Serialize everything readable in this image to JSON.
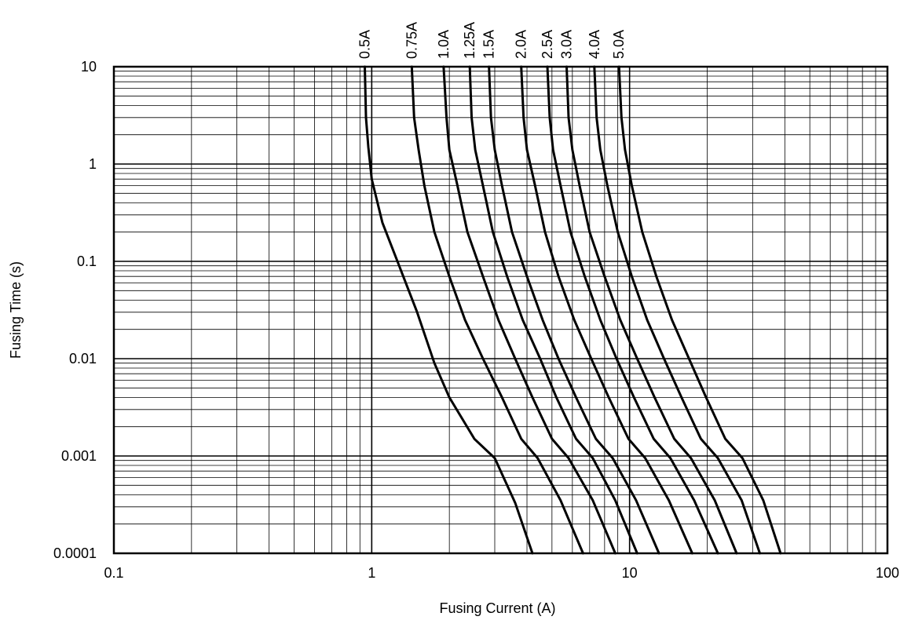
{
  "chart_data": {
    "type": "line",
    "title": "",
    "xlabel": "Fusing Current (A)",
    "ylabel": "Fusing Time (s)",
    "x_scale": "log",
    "y_scale": "log",
    "xlim": [
      0.1,
      100
    ],
    "ylim": [
      0.0001,
      10
    ],
    "grid": true,
    "x_tick_labels": [
      "0.1",
      "1",
      "10",
      "100"
    ],
    "y_tick_labels": [
      "10",
      "1",
      "0.1",
      "0.01",
      "0.001",
      "0.0001"
    ],
    "legend": "curve labels at top",
    "series": [
      {
        "name": "0.5A",
        "points": [
          [
            0.94,
            10
          ],
          [
            0.95,
            3
          ],
          [
            0.97,
            1.5
          ],
          [
            1.0,
            0.7
          ],
          [
            1.1,
            0.25
          ],
          [
            1.3,
            0.08
          ],
          [
            1.5,
            0.03
          ],
          [
            1.75,
            0.009
          ],
          [
            2.0,
            0.004
          ],
          [
            2.5,
            0.0015
          ],
          [
            3.0,
            0.00095
          ],
          [
            3.6,
            0.00033
          ],
          [
            4.2,
            0.0001
          ]
        ]
      },
      {
        "name": "0.75A",
        "points": [
          [
            1.43,
            10
          ],
          [
            1.46,
            3
          ],
          [
            1.52,
            1.4
          ],
          [
            1.6,
            0.6
          ],
          [
            1.75,
            0.2
          ],
          [
            2.0,
            0.07
          ],
          [
            2.3,
            0.025
          ],
          [
            2.7,
            0.01
          ],
          [
            3.2,
            0.004
          ],
          [
            3.8,
            0.0015
          ],
          [
            4.4,
            0.00095
          ],
          [
            5.4,
            0.00035
          ],
          [
            6.6,
            0.0001
          ]
        ]
      },
      {
        "name": "1.0A",
        "points": [
          [
            1.9,
            10
          ],
          [
            1.95,
            3
          ],
          [
            2.0,
            1.4
          ],
          [
            2.15,
            0.6
          ],
          [
            2.35,
            0.2
          ],
          [
            2.7,
            0.07
          ],
          [
            3.1,
            0.025
          ],
          [
            3.6,
            0.01
          ],
          [
            4.2,
            0.004
          ],
          [
            5.0,
            0.0015
          ],
          [
            5.8,
            0.00095
          ],
          [
            7.2,
            0.00035
          ],
          [
            8.8,
            0.0001
          ]
        ]
      },
      {
        "name": "1.25A",
        "points": [
          [
            2.4,
            10
          ],
          [
            2.44,
            3
          ],
          [
            2.52,
            1.4
          ],
          [
            2.7,
            0.6
          ],
          [
            2.95,
            0.2
          ],
          [
            3.35,
            0.07
          ],
          [
            3.85,
            0.025
          ],
          [
            4.5,
            0.01
          ],
          [
            5.2,
            0.004
          ],
          [
            6.2,
            0.0015
          ],
          [
            7.2,
            0.00095
          ],
          [
            8.8,
            0.00035
          ],
          [
            10.7,
            0.0001
          ]
        ]
      },
      {
        "name": "1.5A",
        "points": [
          [
            2.85,
            10
          ],
          [
            2.9,
            3
          ],
          [
            3.0,
            1.4
          ],
          [
            3.2,
            0.6
          ],
          [
            3.5,
            0.2
          ],
          [
            4.0,
            0.07
          ],
          [
            4.6,
            0.025
          ],
          [
            5.3,
            0.01
          ],
          [
            6.2,
            0.004
          ],
          [
            7.4,
            0.0015
          ],
          [
            8.6,
            0.00095
          ],
          [
            10.6,
            0.00035
          ],
          [
            13.0,
            0.0001
          ]
        ]
      },
      {
        "name": "2.0A",
        "points": [
          [
            3.8,
            10
          ],
          [
            3.88,
            3
          ],
          [
            4.0,
            1.4
          ],
          [
            4.3,
            0.6
          ],
          [
            4.7,
            0.2
          ],
          [
            5.3,
            0.07
          ],
          [
            6.1,
            0.025
          ],
          [
            7.1,
            0.01
          ],
          [
            8.3,
            0.004
          ],
          [
            9.9,
            0.0015
          ],
          [
            11.5,
            0.00095
          ],
          [
            14.2,
            0.00035
          ],
          [
            17.5,
            0.0001
          ]
        ]
      },
      {
        "name": "2.5A",
        "points": [
          [
            4.8,
            10
          ],
          [
            4.9,
            3
          ],
          [
            5.05,
            1.4
          ],
          [
            5.4,
            0.6
          ],
          [
            5.9,
            0.2
          ],
          [
            6.7,
            0.07
          ],
          [
            7.7,
            0.025
          ],
          [
            8.9,
            0.01
          ],
          [
            10.4,
            0.004
          ],
          [
            12.4,
            0.0015
          ],
          [
            14.4,
            0.00095
          ],
          [
            17.8,
            0.00035
          ],
          [
            22.0,
            0.0001
          ]
        ]
      },
      {
        "name": "3.0A",
        "points": [
          [
            5.7,
            10
          ],
          [
            5.8,
            3
          ],
          [
            6.0,
            1.4
          ],
          [
            6.4,
            0.6
          ],
          [
            7.0,
            0.2
          ],
          [
            8.0,
            0.07
          ],
          [
            9.2,
            0.025
          ],
          [
            10.7,
            0.01
          ],
          [
            12.5,
            0.004
          ],
          [
            14.9,
            0.0015
          ],
          [
            17.3,
            0.00095
          ],
          [
            21.4,
            0.00035
          ],
          [
            26.0,
            0.0001
          ]
        ]
      },
      {
        "name": "4.0A",
        "points": [
          [
            7.3,
            10
          ],
          [
            7.45,
            3
          ],
          [
            7.7,
            1.4
          ],
          [
            8.2,
            0.6
          ],
          [
            9.0,
            0.2
          ],
          [
            10.2,
            0.07
          ],
          [
            11.7,
            0.025
          ],
          [
            13.6,
            0.01
          ],
          [
            15.9,
            0.004
          ],
          [
            18.9,
            0.0015
          ],
          [
            22.0,
            0.00095
          ],
          [
            27.2,
            0.00035
          ],
          [
            32.0,
            0.0001
          ]
        ]
      },
      {
        "name": "5.0A",
        "points": [
          [
            9.1,
            10
          ],
          [
            9.3,
            3
          ],
          [
            9.6,
            1.4
          ],
          [
            10.2,
            0.6
          ],
          [
            11.2,
            0.2
          ],
          [
            12.7,
            0.07
          ],
          [
            14.6,
            0.025
          ],
          [
            17.0,
            0.01
          ],
          [
            19.8,
            0.004
          ],
          [
            23.5,
            0.0015
          ],
          [
            27.4,
            0.00095
          ],
          [
            33.0,
            0.00035
          ],
          [
            38.5,
            0.0001
          ]
        ]
      }
    ]
  }
}
